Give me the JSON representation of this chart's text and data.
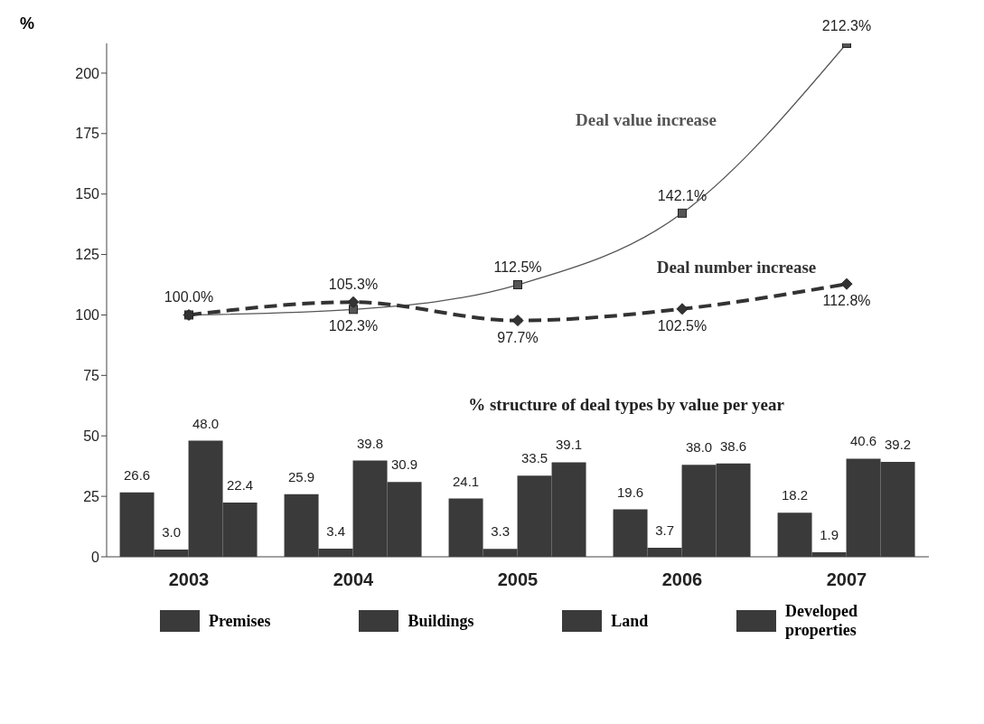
{
  "chart_data": {
    "type": "bar",
    "ylabel": "%",
    "categories": [
      "2003",
      "2004",
      "2005",
      "2006",
      "2007"
    ],
    "series": [
      {
        "name": "Premises",
        "color": "#3a3a3a",
        "values": [
          26.6,
          25.9,
          24.1,
          19.6,
          18.2
        ],
        "value_labels": [
          "26.6",
          "25.9",
          "24.1",
          "19.6",
          "18.2"
        ]
      },
      {
        "name": "Buildings",
        "color": "#3a3a3a",
        "values": [
          3.0,
          3.4,
          3.3,
          3.7,
          1.9
        ],
        "value_labels": [
          "3.0",
          "3.4",
          "3.3",
          "3.7",
          "1.9"
        ]
      },
      {
        "name": "Land",
        "color": "#3a3a3a",
        "values": [
          48.0,
          39.8,
          33.5,
          38.0,
          40.6
        ],
        "value_labels": [
          "48.0",
          "39.8",
          "33.5",
          "38.0",
          "40.6"
        ]
      },
      {
        "name": "Developed properties",
        "color": "#3a3a3a",
        "values": [
          22.4,
          30.9,
          39.1,
          38.6,
          39.2
        ],
        "value_labels": [
          "22.4",
          "30.9",
          "39.1",
          "38.6",
          "39.2"
        ]
      },
      {
        "name": "Deal value increase",
        "type": "line",
        "color": "#555555",
        "marker": "square",
        "line_style": "solid",
        "values": [
          100.0,
          102.3,
          112.5,
          142.1,
          212.3
        ],
        "value_labels": [
          null,
          "102.3%",
          "112.5%",
          "142.1%",
          "212.3%"
        ]
      },
      {
        "name": "Deal number increase",
        "type": "line",
        "color": "#333333",
        "marker": "diamond",
        "line_style": "dashed",
        "values": [
          100.0,
          105.3,
          97.7,
          102.5,
          112.8
        ],
        "value_labels": [
          "100.0%",
          "105.3%",
          "97.7%",
          "102.5%",
          "112.8%"
        ]
      }
    ],
    "ylim": [
      0,
      212.3
    ],
    "yticks": [
      0,
      25,
      50,
      75,
      100,
      125,
      150,
      175,
      200
    ],
    "grid": false,
    "legend": "bottom",
    "annotations": [
      "% structure of deal types by value per year"
    ]
  }
}
